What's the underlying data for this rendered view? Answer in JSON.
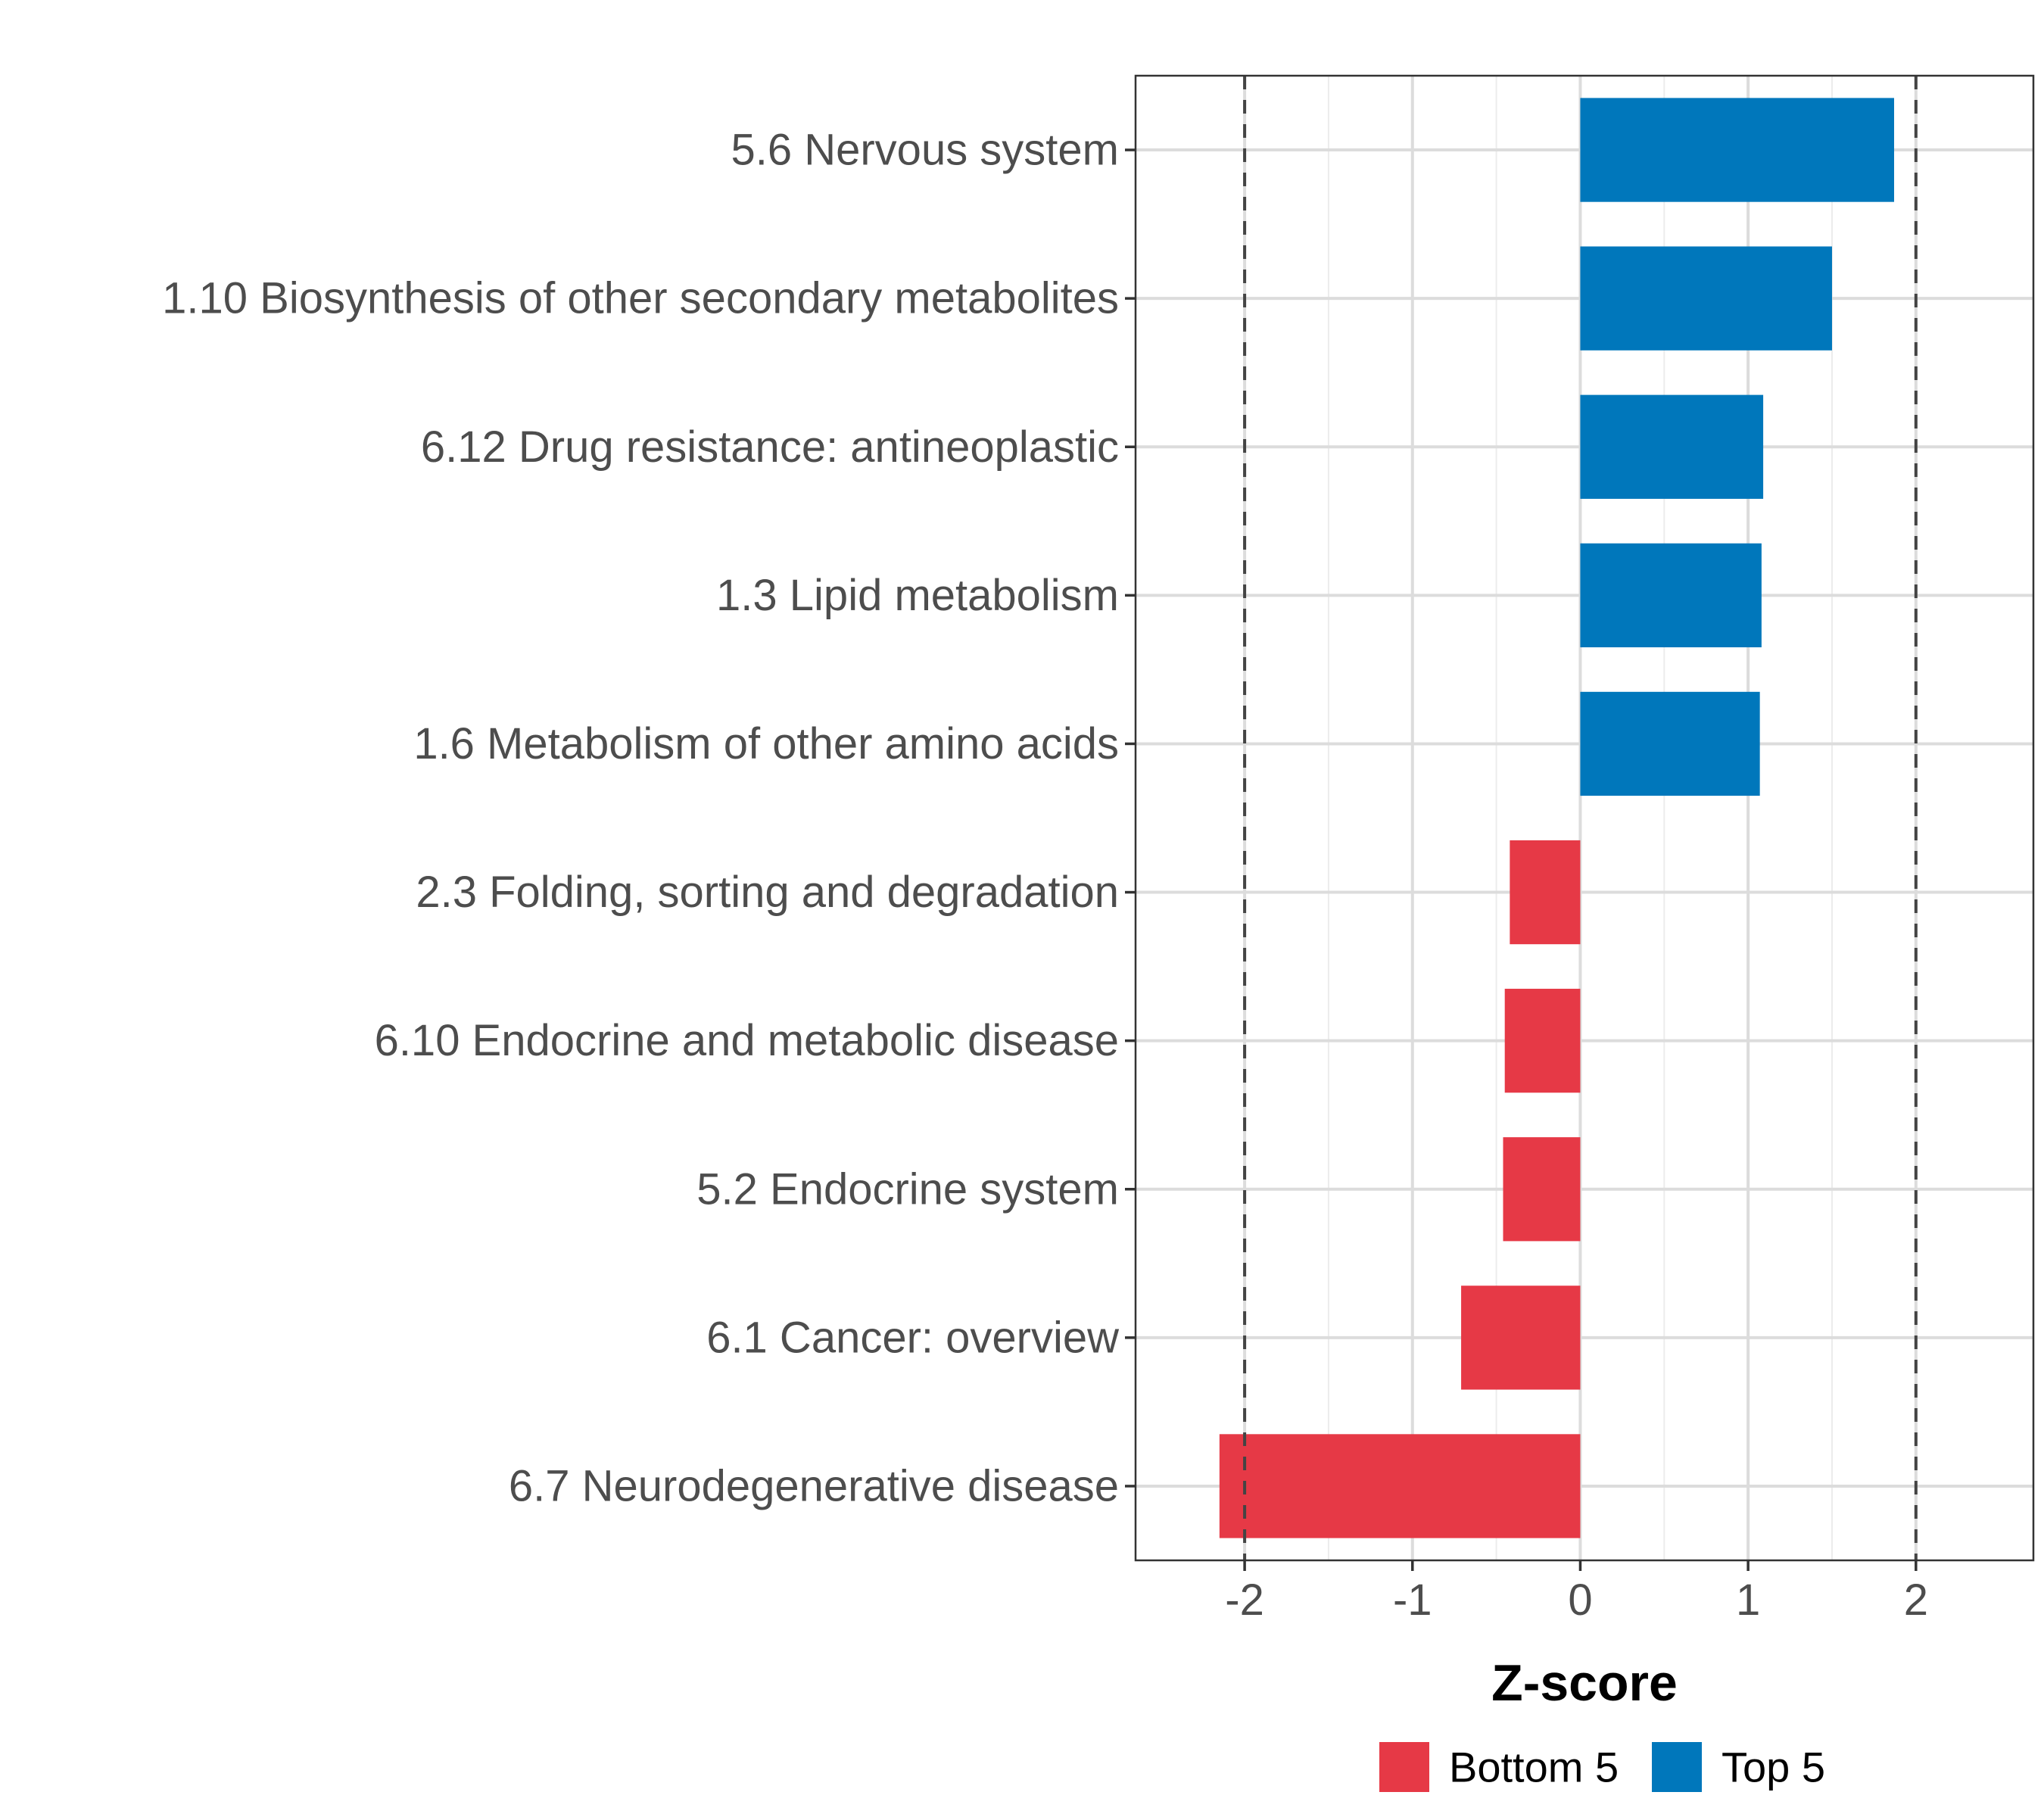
{
  "chart_data": {
    "type": "bar",
    "orientation": "horizontal",
    "title": "",
    "xlabel": "Z-score",
    "ylabel": "",
    "xlim": [
      -2.65,
      2.7
    ],
    "xticks": [
      -2,
      -1,
      0,
      1,
      2
    ],
    "xtick_labels": [
      "-2",
      "-1",
      "0",
      "1",
      "2"
    ],
    "reference_lines": [
      -2,
      2
    ],
    "grid": true,
    "legend_position": "bottom",
    "categories": [
      "5.6 Nervous system",
      "1.10 Biosynthesis of other secondary metabolites",
      "6.12 Drug resistance: antineoplastic",
      "1.3 Lipid metabolism",
      "1.6 Metabolism of other amino acids",
      "2.3 Folding, sorting and degradation",
      "6.10 Endocrine and metabolic disease",
      "5.2 Endocrine system",
      "6.1 Cancer: overview",
      "6.7 Neurodegenerative disease"
    ],
    "values": [
      1.87,
      1.5,
      1.09,
      1.08,
      1.07,
      -0.42,
      -0.45,
      -0.46,
      -0.71,
      -2.15
    ],
    "groups": [
      "Top 5",
      "Top 5",
      "Top 5",
      "Top 5",
      "Top 5",
      "Bottom 5",
      "Bottom 5",
      "Bottom 5",
      "Bottom 5",
      "Bottom 5"
    ],
    "legend": [
      {
        "name": "Bottom 5",
        "color": "#e63946"
      },
      {
        "name": "Top 5",
        "color": "#0077bb"
      }
    ]
  }
}
